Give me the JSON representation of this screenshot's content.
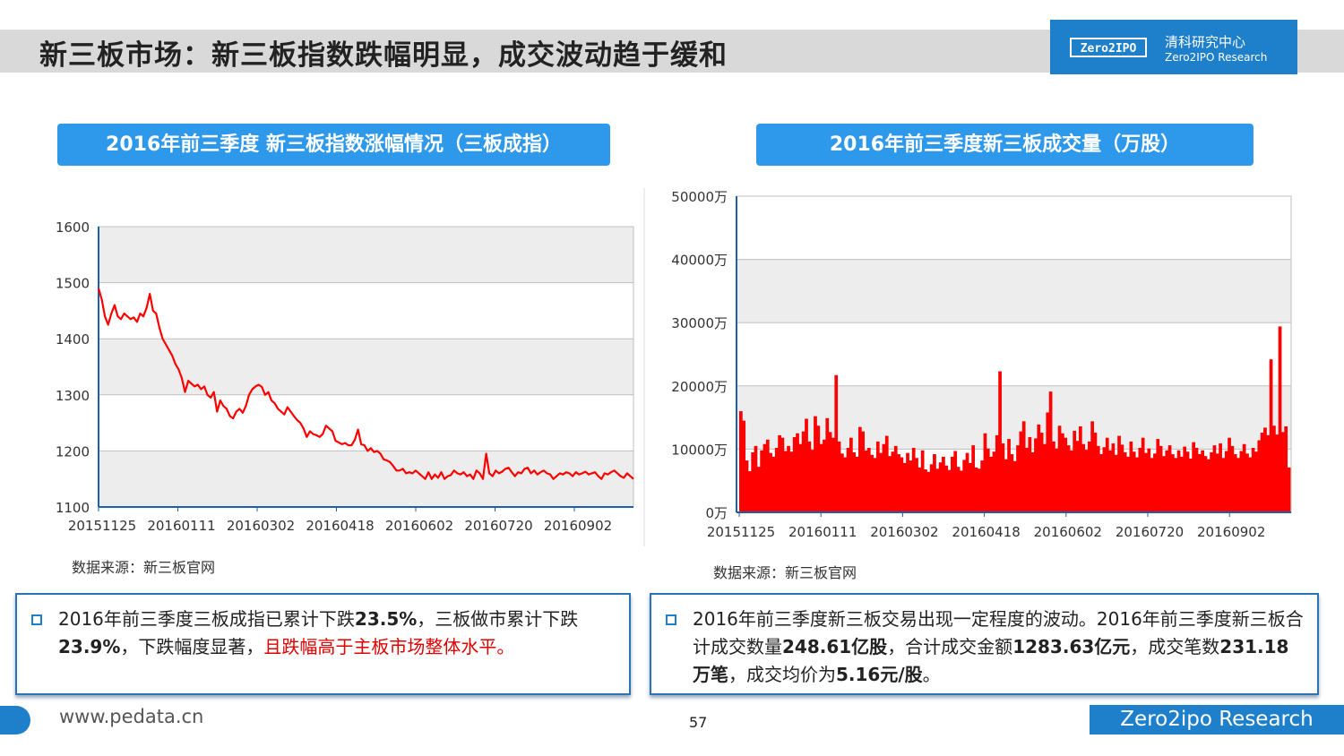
{
  "page_title": "新三板市场：新三板指数跌幅明显，成交波动趋于缓和",
  "logo": {
    "mark": "Zero2IPO",
    "cn": "清科研究中心",
    "en": "Zero2IPO Research"
  },
  "colors": {
    "accent": "#1e7fcb",
    "header_blue": "#2e98ea",
    "series_red": "#ff0000",
    "highlight_red": "#e00000"
  },
  "source_label": "数据来源：新三板官网",
  "notes": {
    "left": {
      "t1": "2016年前三季度三板成指已累计下跌",
      "b1": "23.5%",
      "t2": "，三板做市累计下跌",
      "b2": "23.9%",
      "t3": "，下跌幅度显著，",
      "red": "且跌幅高于主板市场整体水平。"
    },
    "right": {
      "t1": "2016年前三季度新三板交易出现一定程度的波动。2016年前三季度新三板合计成交数量",
      "b1": "248.61亿股",
      "t2": "，合计成交金额",
      "b2": "1283.63亿元",
      "t3": "，成交笔数",
      "b3": "231.18万笔",
      "t4": "，成交均价为",
      "b4": "5.16元/股",
      "t5": "。"
    }
  },
  "footer": {
    "url": "www.pedata.cn",
    "page": "57",
    "brand": "Zero2ipo Research"
  },
  "chart_data": [
    {
      "type": "line",
      "title": "2016年前三季度 新三板指数涨幅情况（三板成指）",
      "ylim": [
        1100,
        1600
      ],
      "yticks": [
        1100,
        1200,
        1300,
        1400,
        1500,
        1600
      ],
      "xticks": [
        "20151125",
        "20160111",
        "20160302",
        "20160418",
        "20160602",
        "20160720",
        "20160902"
      ],
      "grid": true,
      "series": [
        {
          "color": "#ff0000",
          "x": [
            0,
            2,
            4,
            6,
            8,
            10,
            12,
            14,
            16,
            18,
            20,
            22,
            24,
            26,
            28,
            30,
            32,
            34,
            36,
            38,
            40,
            42,
            44,
            46,
            48,
            50,
            52,
            54,
            56,
            58,
            60,
            62,
            64,
            66,
            68,
            70,
            72,
            74,
            76,
            78,
            80,
            82,
            84,
            86,
            88,
            90,
            92,
            94,
            96,
            98,
            100,
            102,
            104,
            106,
            108,
            110,
            112,
            114,
            116,
            118,
            120,
            122,
            124,
            126,
            128,
            130,
            132,
            134,
            136,
            138,
            140,
            142,
            144,
            146,
            148,
            150,
            152,
            154,
            156,
            158,
            160,
            162,
            164,
            166,
            168,
            170,
            172,
            174,
            176,
            178,
            180,
            182,
            184,
            186,
            188,
            190,
            192,
            194,
            196,
            198,
            200,
            202,
            204,
            206,
            208,
            210,
            212,
            214,
            216,
            218,
            220,
            222,
            224,
            226,
            228,
            230,
            232,
            234,
            236,
            238,
            240,
            242,
            244,
            246,
            248,
            250,
            252,
            254,
            256,
            258,
            260,
            262,
            264,
            266,
            268,
            270,
            272,
            274,
            276,
            278,
            280,
            282,
            284,
            286,
            288,
            290,
            292,
            294,
            296,
            298,
            300,
            302,
            304,
            306,
            308,
            310,
            312,
            314,
            316,
            318,
            320,
            322,
            324,
            326,
            328,
            330,
            332,
            334
          ],
          "y": [
            1490,
            1470,
            1440,
            1425,
            1445,
            1460,
            1440,
            1435,
            1445,
            1440,
            1435,
            1438,
            1430,
            1445,
            1440,
            1455,
            1480,
            1450,
            1445,
            1420,
            1400,
            1390,
            1380,
            1370,
            1355,
            1345,
            1330,
            1305,
            1325,
            1320,
            1315,
            1318,
            1310,
            1315,
            1300,
            1295,
            1305,
            1270,
            1290,
            1280,
            1275,
            1262,
            1258,
            1270,
            1275,
            1268,
            1280,
            1300,
            1310,
            1315,
            1318,
            1314,
            1300,
            1305,
            1290,
            1285,
            1275,
            1270,
            1265,
            1278,
            1270,
            1262,
            1255,
            1250,
            1240,
            1225,
            1235,
            1230,
            1228,
            1225,
            1230,
            1245,
            1240,
            1235,
            1218,
            1215,
            1212,
            1214,
            1210,
            1210,
            1220,
            1238,
            1212,
            1210,
            1200,
            1205,
            1198,
            1200,
            1195,
            1185,
            1183,
            1180,
            1173,
            1165,
            1165,
            1168,
            1160,
            1162,
            1160,
            1165,
            1160,
            1155,
            1150,
            1162,
            1150,
            1158,
            1152,
            1162,
            1150,
            1155,
            1157,
            1165,
            1160,
            1158,
            1162,
            1155,
            1158,
            1150,
            1165,
            1160,
            1150,
            1195,
            1160,
            1155,
            1165,
            1160,
            1163,
            1168,
            1170,
            1162,
            1155,
            1162,
            1160,
            1168,
            1170,
            1160,
            1165,
            1158,
            1162,
            1165,
            1160,
            1158,
            1150,
            1155,
            1160,
            1158,
            1162,
            1160,
            1155,
            1162,
            1158,
            1160,
            1163,
            1158,
            1160,
            1162,
            1155,
            1150,
            1160,
            1158,
            1162,
            1165,
            1160,
            1155,
            1152,
            1160,
            1155,
            1150
          ]
        }
      ]
    },
    {
      "type": "bar",
      "title": "2016年前三季度新三板成交量（万股）",
      "ylim": [
        0,
        50000
      ],
      "ytick_labels": [
        "0万",
        "10000万",
        "20000万",
        "30000万",
        "40000万",
        "50000万"
      ],
      "yticks": [
        0,
        10000,
        20000,
        30000,
        40000,
        50000
      ],
      "xticks": [
        "20151125",
        "20160111",
        "20160302",
        "20160418",
        "20160602",
        "20160720",
        "20160902"
      ],
      "grid": true,
      "series": [
        {
          "color": "#ff0000",
          "values": [
            16000,
            14500,
            8200,
            6500,
            9500,
            10500,
            7200,
            9800,
            10800,
            11500,
            9400,
            8800,
            10200,
            12200,
            11800,
            9700,
            10500,
            9600,
            11900,
            12500,
            10800,
            12800,
            14800,
            11200,
            9900,
            15200,
            13700,
            10800,
            11500,
            14900,
            12700,
            11800,
            21700,
            11200,
            9300,
            8700,
            10200,
            11800,
            9500,
            8800,
            13500,
            12800,
            9800,
            10200,
            9100,
            8600,
            11200,
            9400,
            10800,
            12100,
            8900,
            9600,
            10500,
            9200,
            8700,
            7800,
            9400,
            8200,
            10200,
            8600,
            7100,
            9800,
            6800,
            6400,
            7600,
            9200,
            6900,
            7900,
            8800,
            7400,
            6700,
            8800,
            9700,
            7200,
            6600,
            8300,
            9400,
            7800,
            10600,
            7100,
            6900,
            8200,
            12500,
            10100,
            8800,
            9600,
            12200,
            22300,
            10900,
            8400,
            11600,
            9200,
            8100,
            10600,
            12800,
            14400,
            10200,
            11900,
            9500,
            11700,
            13900,
            12600,
            10800,
            15800,
            19100,
            11200,
            10100,
            13700,
            12500,
            11800,
            10600,
            9800,
            12900,
            11300,
            13600,
            10800,
            9900,
            11200,
            14400,
            12600,
            10500,
            9200,
            10300,
            11800,
            9800,
            10900,
            9100,
            12100,
            10700,
            9500,
            8800,
            11200,
            9600,
            8700,
            10200,
            11800,
            9400,
            10100,
            8600,
            9300,
            11600,
            10500,
            8900,
            9800,
            10600,
            9200,
            8600,
            9800,
            8800,
            10400,
            9600,
            8500,
            11100,
            10200,
            9200,
            9800,
            8900,
            8400,
            9500,
            10600,
            9300,
            10900,
            8600,
            9700,
            11800,
            10500,
            9200,
            8600,
            9700,
            10800,
            9300,
            8700,
            10200,
            9600,
            11400,
            12600,
            13400,
            12200,
            24200,
            13700,
            12300,
            29400,
            12700,
            13600,
            7100
          ]
        }
      ]
    }
  ]
}
